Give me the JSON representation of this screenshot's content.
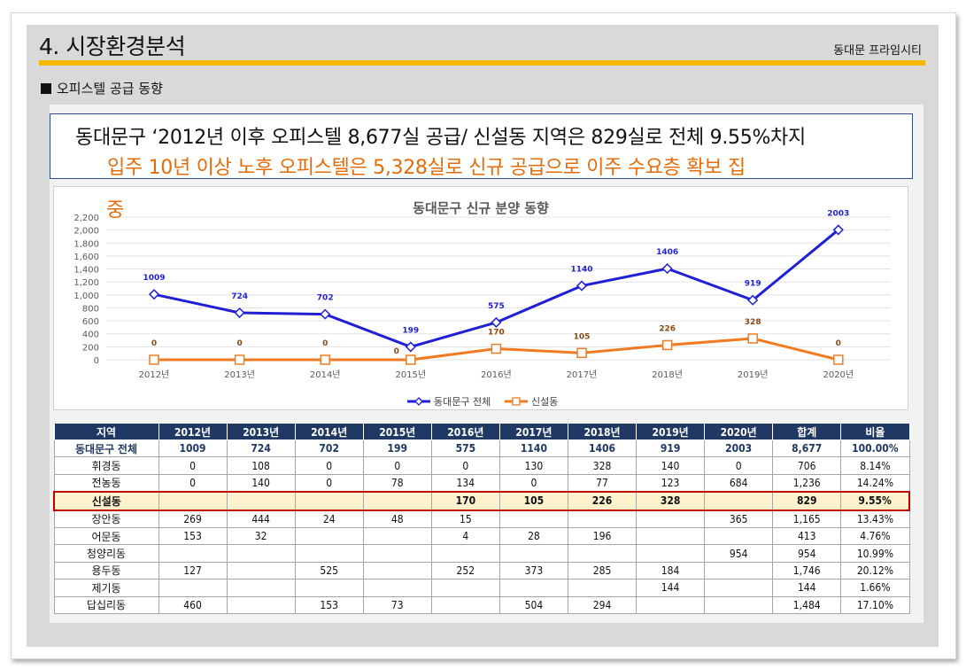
{
  "header": {
    "title": "4. 시장환경분석",
    "brand": "동대문 프라임시티"
  },
  "section": {
    "title": "오피스텔 공급 동향"
  },
  "headline": {
    "line1": "동대문구 ‘2012년 이후 오피스텔 8,677실 공급/ 신설동 지역은 829실로 전체 9.55%차지",
    "line2": "입주 10년 이상 노후 오피스텔은 5,328실로 신규 공급으로 이주 수요층 확보 집",
    "line3": "중"
  },
  "colors": {
    "series1": "#1f1fd6",
    "series2": "#f07b22",
    "header": "#1f3864",
    "highlight": "#fff2cc",
    "accent": "#f5b800"
  },
  "chart_data": {
    "type": "line",
    "title": "동대문구 신규 분양 동향",
    "categories": [
      "2012년",
      "2013년",
      "2014년",
      "2015년",
      "2016년",
      "2017년",
      "2018년",
      "2019년",
      "2020년"
    ],
    "series": [
      {
        "name": "동대문구 전체",
        "values": [
          1009,
          724,
          702,
          199,
          575,
          1140,
          1406,
          919,
          2003
        ]
      },
      {
        "name": "신설동",
        "values": [
          0,
          0,
          0,
          0,
          170,
          105,
          226,
          328,
          0
        ]
      }
    ],
    "yticks": [
      "0",
      "200",
      "400",
      "600",
      "800",
      "1,000",
      "1,200",
      "1,400",
      "1,600",
      "1,800",
      "2,000",
      "2,200"
    ],
    "ylim": [
      0,
      2200
    ],
    "legend_position": "bottom",
    "grid": true
  },
  "table": {
    "headers": [
      "지역",
      "2012년",
      "2013년",
      "2014년",
      "2015년",
      "2016년",
      "2017년",
      "2018년",
      "2019년",
      "2020년",
      "합계",
      "비율"
    ],
    "rows": [
      [
        "동대문구 전체",
        "1009",
        "724",
        "702",
        "199",
        "575",
        "1140",
        "1406",
        "919",
        "2003",
        "8,677",
        "100.00%"
      ],
      [
        "휘경동",
        "0",
        "108",
        "0",
        "0",
        "0",
        "130",
        "328",
        "140",
        "0",
        "706",
        "8.14%"
      ],
      [
        "전농동",
        "0",
        "140",
        "0",
        "78",
        "134",
        "0",
        "77",
        "123",
        "684",
        "1,236",
        "14.24%"
      ],
      [
        "신설동",
        "",
        "",
        "",
        "",
        "170",
        "105",
        "226",
        "328",
        "",
        "829",
        "9.55%"
      ],
      [
        "장안동",
        "269",
        "444",
        "24",
        "48",
        "15",
        "",
        "",
        "",
        "365",
        "1,165",
        "13.43%"
      ],
      [
        "어문동",
        "153",
        "32",
        "",
        "",
        "4",
        "28",
        "196",
        "",
        "",
        "413",
        "4.76%"
      ],
      [
        "청양리동",
        "",
        "",
        "",
        "",
        "",
        "",
        "",
        "",
        "954",
        "954",
        "10.99%"
      ],
      [
        "용두동",
        "127",
        "",
        "525",
        "",
        "252",
        "373",
        "285",
        "184",
        "",
        "1,746",
        "20.12%"
      ],
      [
        "제기동",
        "",
        "",
        "",
        "",
        "",
        "",
        "",
        "144",
        "",
        "144",
        "1.66%"
      ],
      [
        "답십리동",
        "460",
        "",
        "153",
        "73",
        "",
        "504",
        "294",
        "",
        "",
        "1,484",
        "17.10%"
      ]
    ]
  }
}
